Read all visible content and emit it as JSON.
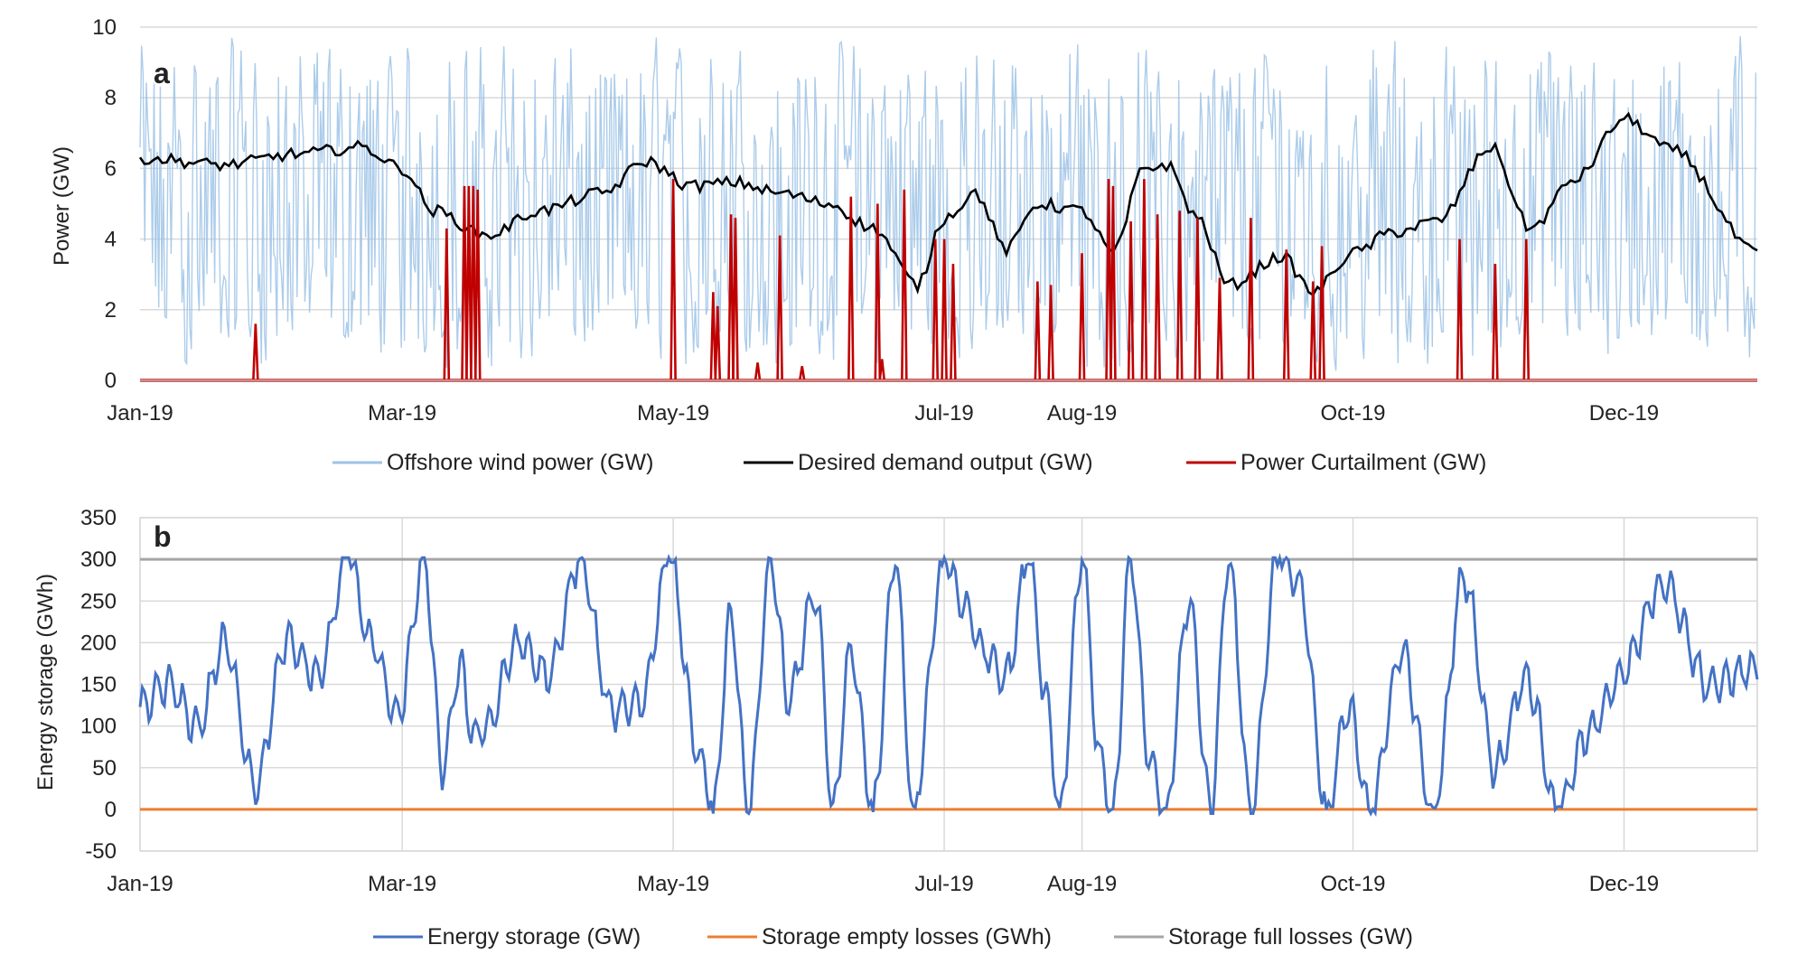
{
  "chart_data": [
    {
      "panel_label": "a",
      "type": "line",
      "ylabel": "Power (GW)",
      "xlabel": "",
      "x_tick_labels": [
        "Jan-19",
        "Mar-19",
        "May-19",
        "Jul-19",
        "Aug-19",
        "Oct-19",
        "Dec-19"
      ],
      "y_tick_labels": [
        "0",
        "2",
        "4",
        "6",
        "8",
        "10"
      ],
      "ylim": [
        0,
        10
      ],
      "grid": "horizontal",
      "legend_position": "bottom",
      "series": [
        {
          "name": "Offshore wind power (GW)",
          "color": "#9dc3e6",
          "description_values": "rapidly fluctuating between 0 and 10 GW throughout the year",
          "envelope_range": [
            0,
            10
          ]
        },
        {
          "name": "Desired demand output (GW)",
          "color": "#000000",
          "x": [
            "2019-01-01",
            "2019-01-20",
            "2019-02-05",
            "2019-02-20",
            "2019-03-01",
            "2019-03-08",
            "2019-03-20",
            "2019-04-01",
            "2019-04-15",
            "2019-04-25",
            "2019-05-05",
            "2019-05-15",
            "2019-05-25",
            "2019-06-05",
            "2019-06-15",
            "2019-06-25",
            "2019-07-01",
            "2019-07-08",
            "2019-07-15",
            "2019-07-22",
            "2019-08-01",
            "2019-08-08",
            "2019-08-15",
            "2019-08-20",
            "2019-08-27",
            "2019-09-03",
            "2019-09-15",
            "2019-09-22",
            "2019-10-01",
            "2019-10-10",
            "2019-10-20",
            "2019-11-01",
            "2019-11-10",
            "2019-11-20",
            "2019-12-01",
            "2019-12-12",
            "2019-12-31"
          ],
          "y": [
            6.3,
            6.1,
            6.4,
            6.6,
            6.0,
            4.8,
            4.1,
            4.8,
            5.3,
            6.2,
            5.5,
            5.6,
            5.3,
            5.0,
            4.3,
            2.7,
            4.6,
            5.3,
            3.7,
            5.0,
            4.8,
            3.6,
            6.0,
            6.1,
            4.6,
            2.7,
            3.5,
            2.5,
            3.6,
            4.2,
            4.5,
            6.6,
            4.3,
            5.7,
            7.4,
            6.5,
            3.6
          ]
        },
        {
          "name": "Power Curtailment (GW)",
          "color": "#c00000",
          "x": [
            "2019-01-27",
            "2019-03-11",
            "2019-03-15",
            "2019-03-16",
            "2019-03-17",
            "2019-03-18",
            "2019-05-01",
            "2019-05-10",
            "2019-05-11",
            "2019-05-14",
            "2019-05-15",
            "2019-05-20",
            "2019-05-25",
            "2019-05-30",
            "2019-06-10",
            "2019-06-16",
            "2019-06-17",
            "2019-06-22",
            "2019-06-29",
            "2019-07-01",
            "2019-07-03",
            "2019-07-22",
            "2019-07-25",
            "2019-08-01",
            "2019-08-07",
            "2019-08-08",
            "2019-08-12",
            "2019-08-15",
            "2019-08-18",
            "2019-08-23",
            "2019-08-27",
            "2019-09-01",
            "2019-09-08",
            "2019-09-16",
            "2019-09-22",
            "2019-09-24",
            "2019-10-25",
            "2019-11-02",
            "2019-11-09"
          ],
          "y": [
            1.6,
            4.3,
            5.5,
            5.5,
            5.5,
            5.4,
            5.7,
            2.5,
            2.1,
            4.7,
            4.6,
            0.5,
            4.1,
            0.4,
            5.2,
            5.0,
            0.6,
            5.4,
            4.0,
            4.0,
            3.3,
            2.8,
            2.7,
            3.6,
            5.7,
            5.5,
            4.5,
            5.7,
            4.7,
            4.8,
            4.6,
            2.9,
            4.6,
            3.7,
            2.8,
            3.8,
            4.0,
            3.3,
            4.0
          ]
        }
      ]
    },
    {
      "panel_label": "b",
      "type": "line",
      "ylabel": "Energy storage (GWh)",
      "xlabel": "",
      "x_tick_labels": [
        "Jan-19",
        "Mar-19",
        "May-19",
        "Jul-19",
        "Aug-19",
        "Oct-19",
        "Dec-19"
      ],
      "y_tick_labels": [
        "-50",
        "0",
        "50",
        "100",
        "150",
        "200",
        "250",
        "300",
        "350"
      ],
      "ylim": [
        -50,
        350
      ],
      "grid": "both",
      "legend_position": "bottom",
      "series": [
        {
          "name": "Energy storage (GW)",
          "color": "#4472c4",
          "x": [
            "2019-01-01",
            "2019-01-07",
            "2019-01-14",
            "2019-01-20",
            "2019-01-27",
            "2019-02-03",
            "2019-02-10",
            "2019-02-17",
            "2019-02-22",
            "2019-02-28",
            "2019-03-06",
            "2019-03-10",
            "2019-03-14",
            "2019-03-17",
            "2019-03-20",
            "2019-03-27",
            "2019-04-03",
            "2019-04-10",
            "2019-04-17",
            "2019-04-24",
            "2019-04-30",
            "2019-05-07",
            "2019-05-10",
            "2019-05-14",
            "2019-05-18",
            "2019-05-23",
            "2019-05-27",
            "2019-06-02",
            "2019-06-06",
            "2019-06-10",
            "2019-06-15",
            "2019-06-20",
            "2019-06-24",
            "2019-07-01",
            "2019-07-05",
            "2019-07-10",
            "2019-07-15",
            "2019-07-20",
            "2019-07-24",
            "2019-07-27",
            "2019-08-01",
            "2019-08-05",
            "2019-08-08",
            "2019-08-12",
            "2019-08-16",
            "2019-08-20",
            "2019-08-25",
            "2019-08-30",
            "2019-09-03",
            "2019-09-08",
            "2019-09-14",
            "2019-09-19",
            "2019-09-25",
            "2019-09-30",
            "2019-10-05",
            "2019-10-12",
            "2019-10-19",
            "2019-10-26",
            "2019-11-02",
            "2019-11-09",
            "2019-11-16",
            "2019-11-23",
            "2019-11-30",
            "2019-12-10",
            "2019-12-20",
            "2019-12-31"
          ],
          "y": [
            120,
            150,
            100,
            200,
            30,
            200,
            160,
            300,
            200,
            110,
            300,
            50,
            170,
            90,
            100,
            200,
            160,
            300,
            120,
            130,
            300,
            60,
            0,
            230,
            0,
            300,
            130,
            260,
            0,
            190,
            0,
            300,
            0,
            300,
            250,
            190,
            160,
            300,
            130,
            0,
            300,
            60,
            0,
            300,
            60,
            0,
            250,
            0,
            300,
            0,
            300,
            270,
            0,
            120,
            0,
            190,
            0,
            280,
            50,
            160,
            0,
            90,
            160,
            270,
            150,
            170
          ]
        },
        {
          "name": "Storage empty losses (GWh)",
          "color": "#ed7d31",
          "constant_value": 0
        },
        {
          "name": "Storage full losses (GW)",
          "color": "#a5a5a5",
          "constant_value": 300
        }
      ]
    }
  ]
}
